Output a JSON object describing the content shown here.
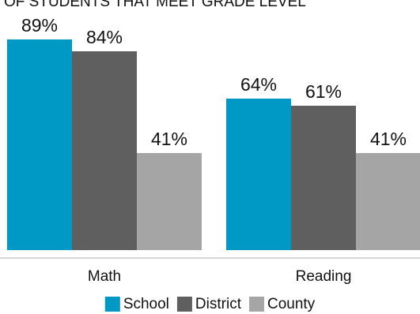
{
  "chart_data": {
    "type": "bar",
    "title": "OF STUDENTS THAT MEET GRADE LEVEL",
    "categories": [
      "Math",
      "Reading"
    ],
    "series": [
      {
        "name": "School",
        "values": [
          89,
          64
        ],
        "color": "#0099c6"
      },
      {
        "name": "District",
        "values": [
          84,
          61
        ],
        "color": "#5f5f5f"
      },
      {
        "name": "County",
        "values": [
          41,
          41
        ],
        "color": "#a5a5a5"
      }
    ],
    "value_suffix": "%",
    "ylim": [
      0,
      100
    ],
    "grid": false,
    "legend": "bottom-center",
    "baseline_color": "#c9c9c9"
  }
}
